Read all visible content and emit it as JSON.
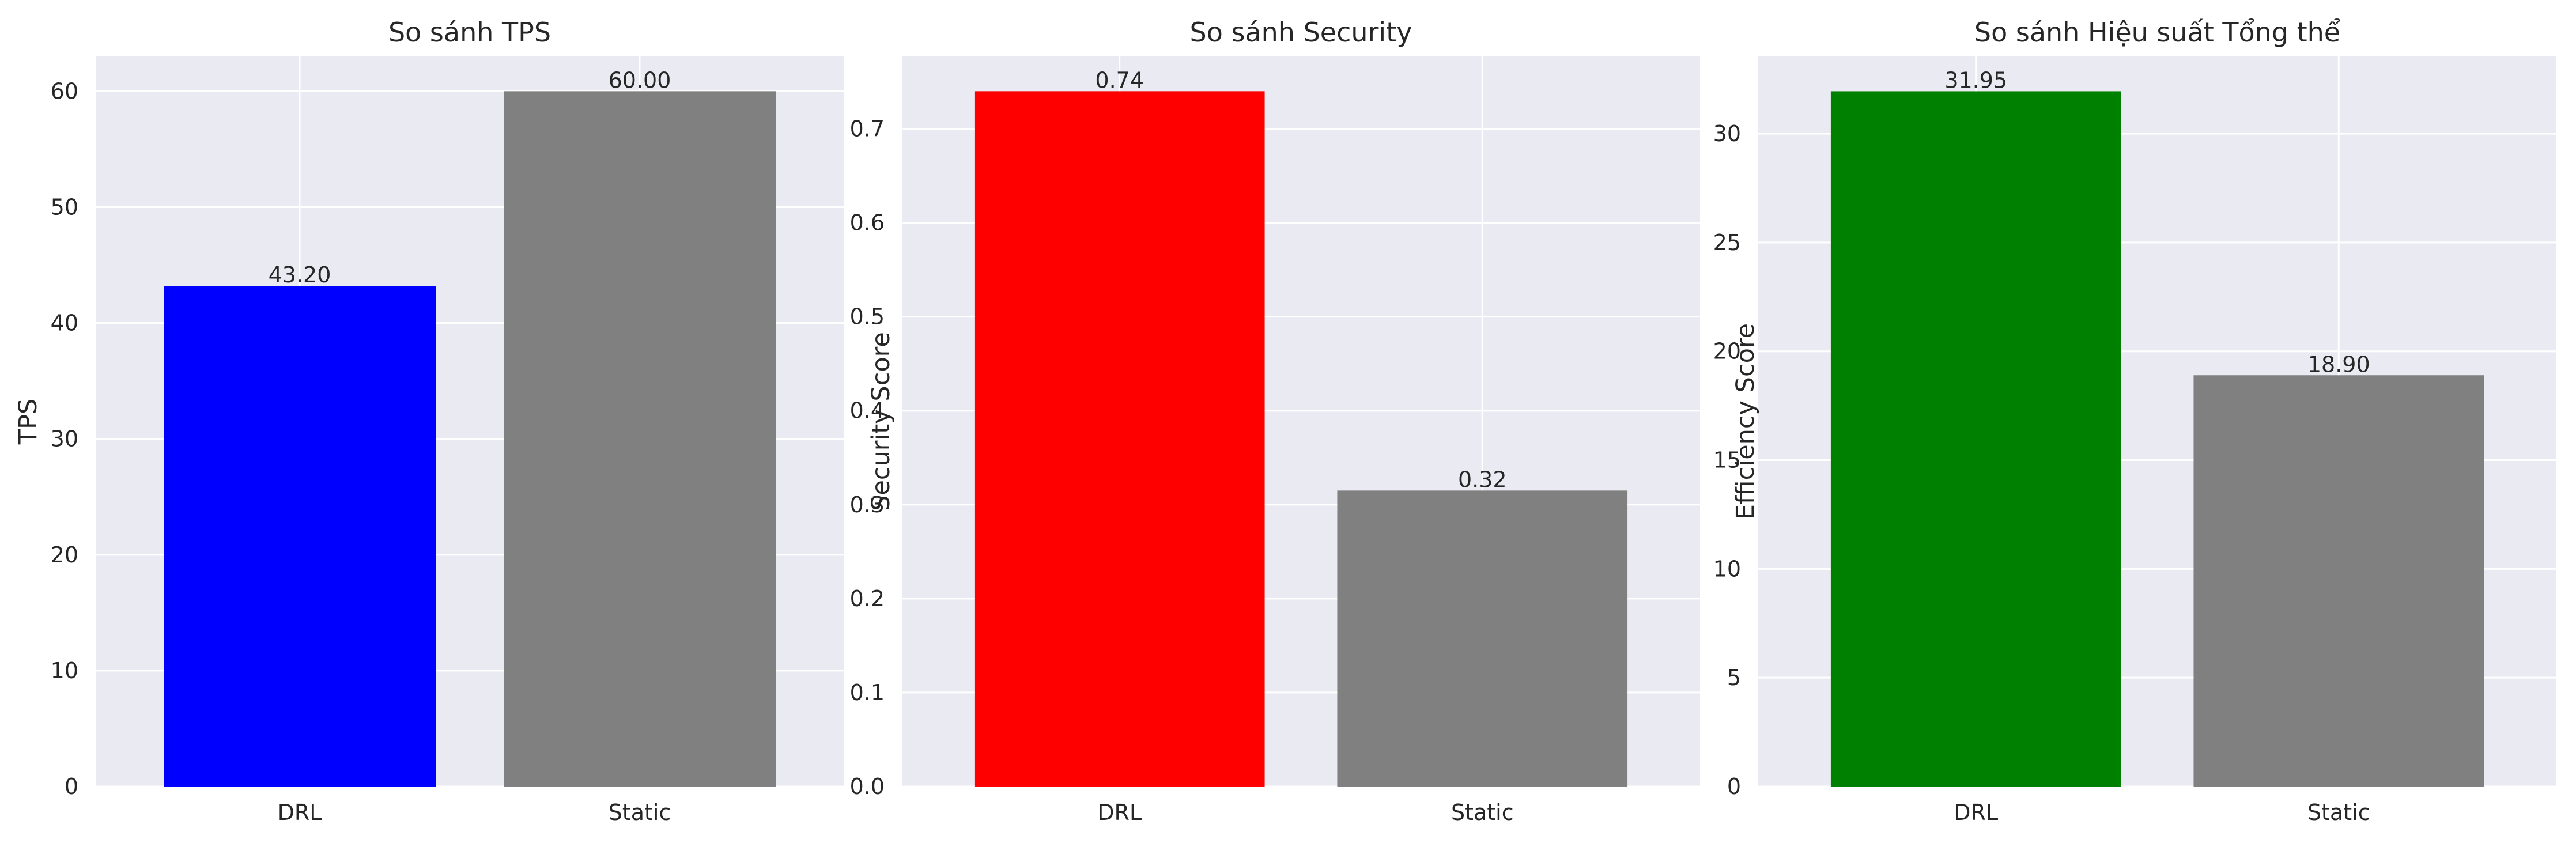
{
  "chart_data": [
    {
      "type": "bar",
      "title": "So sánh TPS",
      "xlabel": "",
      "ylabel": "TPS",
      "categories": [
        "DRL",
        "Static"
      ],
      "values": [
        43.2,
        60.0
      ],
      "value_labels": [
        "43.20",
        "60.00"
      ],
      "colors": [
        "#0000ff",
        "#808080"
      ],
      "ylim": [
        0,
        63
      ],
      "yticks": [
        0,
        10,
        20,
        30,
        40,
        50,
        60
      ],
      "ytick_labels": [
        "0",
        "10",
        "20",
        "30",
        "40",
        "50",
        "60"
      ],
      "grid": true
    },
    {
      "type": "bar",
      "title": "So sánh Security",
      "xlabel": "",
      "ylabel": "Security Score",
      "categories": [
        "DRL",
        "Static"
      ],
      "values": [
        0.74,
        0.315
      ],
      "value_labels": [
        "0.74",
        "0.32"
      ],
      "colors": [
        "#ff0000",
        "#808080"
      ],
      "ylim": [
        0,
        0.777
      ],
      "yticks": [
        0,
        0.1,
        0.2,
        0.3,
        0.4,
        0.5,
        0.6,
        0.7
      ],
      "ytick_labels": [
        "0.0",
        "0.1",
        "0.2",
        "0.3",
        "0.4",
        "0.5",
        "0.6",
        "0.7"
      ],
      "grid": true
    },
    {
      "type": "bar",
      "title": "So sánh Hiệu suất Tổng thể",
      "xlabel": "",
      "ylabel": "Efficiency Score",
      "categories": [
        "DRL",
        "Static"
      ],
      "values": [
        31.95,
        18.9
      ],
      "value_labels": [
        "31.95",
        "18.90"
      ],
      "colors": [
        "#008000",
        "#808080"
      ],
      "ylim": [
        0,
        33.55
      ],
      "yticks": [
        0,
        5,
        10,
        15,
        20,
        25,
        30
      ],
      "ytick_labels": [
        "0",
        "5",
        "10",
        "15",
        "20",
        "25",
        "30"
      ],
      "grid": true
    }
  ],
  "style": {
    "axes_background": "#eaeaf2",
    "grid_color": "#ffffff",
    "text_color": "#262626"
  }
}
